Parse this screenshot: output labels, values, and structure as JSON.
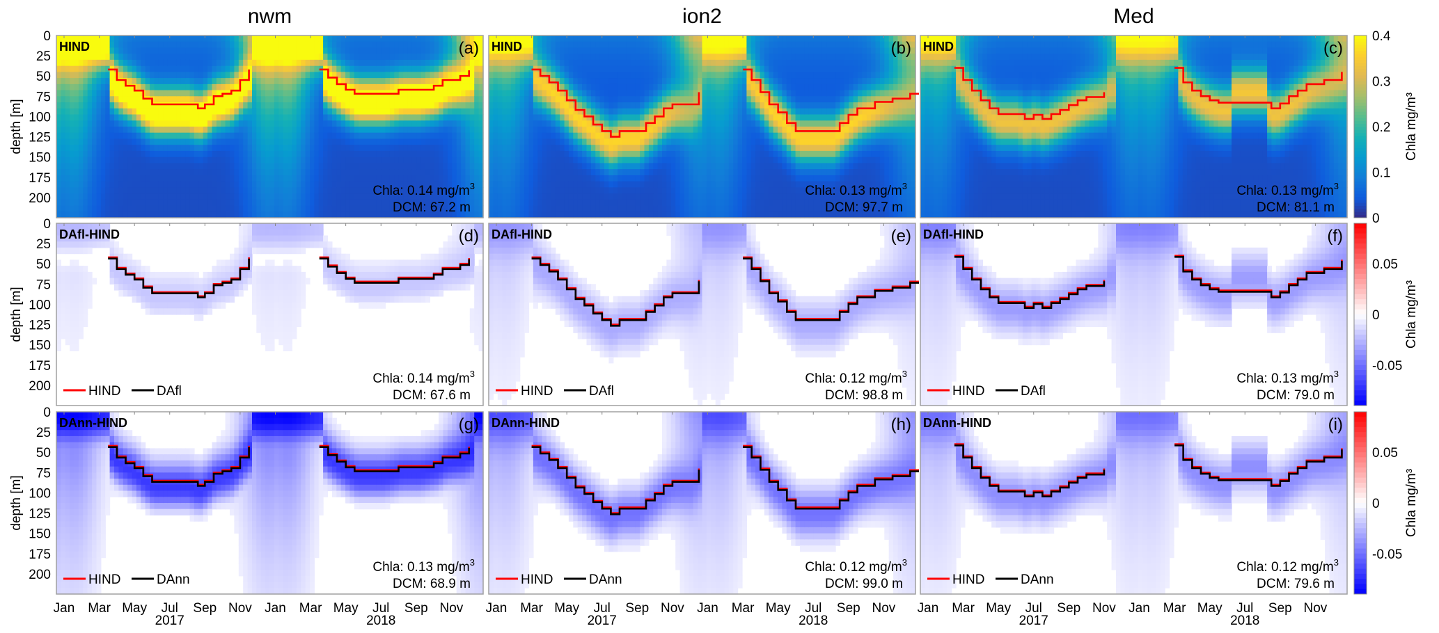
{
  "figure": {
    "column_titles": [
      "nwm",
      "ion2",
      "Med"
    ],
    "ylabel": "depth [m]",
    "colorbar_top": {
      "label": "Chla mg/m³",
      "ticks": [
        "0",
        "0.1",
        "0.2",
        "0.3",
        "0.4"
      ],
      "range": [
        0,
        0.4
      ],
      "colormap": "parula"
    },
    "colorbar_diff": {
      "label": "Chla mg/m³",
      "ticks": [
        "0.05",
        "0",
        "-0.05"
      ],
      "range": [
        -0.09,
        0.09
      ],
      "colormap": "blue-white-red"
    },
    "line_colors": {
      "HIND": "#ff0000",
      "DA": "#000000"
    }
  },
  "chart_data": {
    "type": "heatmap",
    "title": "",
    "x_ticks": [
      "Jan",
      "Mar",
      "May",
      "Jul",
      "Sep",
      "Nov",
      "Jan",
      "Mar",
      "May",
      "Jul",
      "Sep",
      "Nov"
    ],
    "x_years": [
      "2017",
      "2018"
    ],
    "x_range_months": [
      0,
      24
    ],
    "y_ticks": [
      "0",
      "25",
      "50",
      "75",
      "100",
      "125",
      "150",
      "175",
      "200"
    ],
    "y_range": [
      0,
      225
    ],
    "ylabel": "depth [m]",
    "panels": [
      {
        "id": "a",
        "row": 0,
        "col": 0,
        "tag": "HIND",
        "letter": "(a)",
        "kind": "hind",
        "chla": "Chla: 0.14 mg/m",
        "dcm": "DCM: 67.2 m",
        "peak": 0.45,
        "legend": null,
        "dcm_hind": [
          [
            2.5,
            42
          ],
          [
            3.0,
            55
          ],
          [
            3.5,
            62
          ],
          [
            4.0,
            68
          ],
          [
            4.5,
            78
          ],
          [
            5.0,
            85
          ],
          [
            6.0,
            85
          ],
          [
            7.0,
            85
          ],
          [
            7.6,
            90
          ],
          [
            8.0,
            85
          ],
          [
            8.5,
            75
          ],
          [
            9.0,
            72
          ],
          [
            9.5,
            68
          ],
          [
            10.0,
            55
          ],
          [
            10.5,
            42
          ],
          [
            14.5,
            42
          ],
          [
            15.0,
            52
          ],
          [
            15.5,
            60
          ],
          [
            16.0,
            67
          ],
          [
            16.5,
            72
          ],
          [
            17.0,
            72
          ],
          [
            18.0,
            72
          ],
          [
            19.0,
            67
          ],
          [
            20.0,
            67
          ],
          [
            21.0,
            62
          ],
          [
            21.5,
            55
          ],
          [
            22.5,
            50
          ],
          [
            23.0,
            43
          ]
        ]
      },
      {
        "id": "b",
        "row": 0,
        "col": 1,
        "tag": "HIND",
        "letter": "(b)",
        "kind": "hind",
        "chla": "Chla: 0.13 mg/m",
        "dcm": "DCM: 97.7 m",
        "peak": 0.33,
        "legend": null,
        "dcm_hind": [
          [
            2.0,
            42
          ],
          [
            2.5,
            50
          ],
          [
            3.0,
            58
          ],
          [
            3.5,
            68
          ],
          [
            4.0,
            80
          ],
          [
            4.5,
            92
          ],
          [
            5.0,
            100
          ],
          [
            5.5,
            110
          ],
          [
            6.0,
            118
          ],
          [
            6.5,
            125
          ],
          [
            7.0,
            118
          ],
          [
            8.0,
            118
          ],
          [
            8.5,
            108
          ],
          [
            9.0,
            100
          ],
          [
            9.5,
            90
          ],
          [
            10.0,
            85
          ],
          [
            11.0,
            85
          ],
          [
            11.5,
            70
          ],
          [
            14.0,
            42
          ],
          [
            14.5,
            55
          ],
          [
            15.0,
            70
          ],
          [
            15.5,
            85
          ],
          [
            16.0,
            95
          ],
          [
            16.5,
            108
          ],
          [
            17.0,
            118
          ],
          [
            18.0,
            118
          ],
          [
            19.0,
            118
          ],
          [
            19.5,
            108
          ],
          [
            20.0,
            98
          ],
          [
            20.5,
            90
          ],
          [
            21.5,
            82
          ],
          [
            22.5,
            78
          ],
          [
            23.5,
            72
          ],
          [
            24.0,
            72
          ]
        ]
      },
      {
        "id": "c",
        "row": 0,
        "col": 2,
        "tag": "HIND",
        "letter": "(c)",
        "kind": "hind",
        "chla": "Chla: 0.13 mg/m",
        "dcm": "DCM: 81.1 m",
        "peak": 0.3,
        "legend": null,
        "dcm_hind": [
          [
            1.5,
            40
          ],
          [
            2.0,
            55
          ],
          [
            2.5,
            68
          ],
          [
            3.0,
            80
          ],
          [
            3.5,
            90
          ],
          [
            4.0,
            97
          ],
          [
            5.0,
            97
          ],
          [
            5.5,
            103
          ],
          [
            6.0,
            98
          ],
          [
            6.5,
            103
          ],
          [
            7.0,
            97
          ],
          [
            7.5,
            92
          ],
          [
            8.0,
            86
          ],
          [
            8.5,
            80
          ],
          [
            9.0,
            76
          ],
          [
            10.0,
            70
          ],
          [
            14.0,
            40
          ],
          [
            14.5,
            58
          ],
          [
            15.0,
            68
          ],
          [
            15.5,
            75
          ],
          [
            16.0,
            80
          ],
          [
            16.5,
            83
          ],
          [
            17.0,
            83
          ],
          [
            19.0,
            83
          ],
          [
            19.5,
            90
          ],
          [
            20.0,
            84
          ],
          [
            20.5,
            75
          ],
          [
            21.0,
            68
          ],
          [
            21.5,
            60
          ],
          [
            22.5,
            55
          ],
          [
            23.5,
            45
          ]
        ]
      },
      {
        "id": "d",
        "row": 1,
        "col": 0,
        "tag": "DAfl-HIND",
        "letter": "(d)",
        "kind": "diff",
        "chla": "Chla: 0.14 mg/m",
        "dcm": "DCM: 67.6 m",
        "legend": [
          "HIND",
          "DAfl"
        ],
        "neg": 0.02,
        "pos": 0.01
      },
      {
        "id": "e",
        "row": 1,
        "col": 1,
        "tag": "DAfl-HIND",
        "letter": "(e)",
        "kind": "diff",
        "chla": "Chla: 0.12 mg/m",
        "dcm": "DCM: 98.8 m",
        "legend": [
          "HIND",
          "DAfl"
        ],
        "neg": 0.03,
        "pos": 0.0
      },
      {
        "id": "f",
        "row": 1,
        "col": 2,
        "tag": "DAfl-HIND",
        "letter": "(f)",
        "kind": "diff",
        "chla": "Chla: 0.13 mg/m",
        "dcm": "DCM: 79.0 m",
        "legend": [
          "HIND",
          "DAfl"
        ],
        "neg": 0.035,
        "pos": 0.0
      },
      {
        "id": "g",
        "row": 2,
        "col": 0,
        "tag": "DAnn-HIND",
        "letter": "(g)",
        "kind": "diff",
        "chla": "Chla: 0.13 mg/m",
        "dcm": "DCM: 68.9 m",
        "legend": [
          "HIND",
          "DAnn"
        ],
        "neg": 0.07,
        "pos": 0.01
      },
      {
        "id": "h",
        "row": 2,
        "col": 1,
        "tag": "DAnn-HIND",
        "letter": "(h)",
        "kind": "diff",
        "chla": "Chla: 0.12 mg/m",
        "dcm": "DCM: 99.0 m",
        "legend": [
          "HIND",
          "DAnn"
        ],
        "neg": 0.05,
        "pos": 0.0
      },
      {
        "id": "i",
        "row": 2,
        "col": 2,
        "tag": "DAnn-HIND",
        "letter": "(i)",
        "kind": "diff",
        "chla": "Chla: 0.12 mg/m",
        "dcm": "DCM: 79.6 m",
        "legend": [
          "HIND",
          "DAnn"
        ],
        "neg": 0.04,
        "pos": 0.0
      }
    ]
  }
}
